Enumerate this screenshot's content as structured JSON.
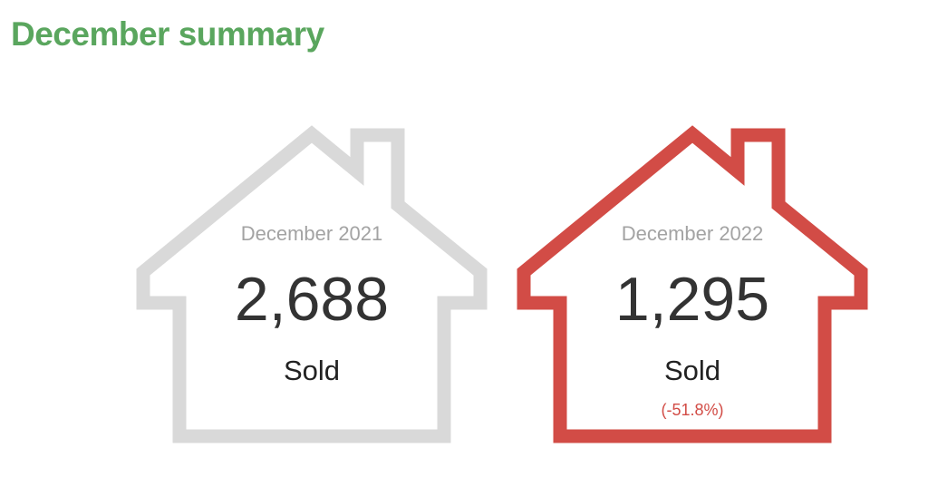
{
  "title": "December summary",
  "colors": {
    "title": "#5aa65e",
    "house_previous": "#d9d9d9",
    "house_current": "#d24c46",
    "change_negative": "#d24c46",
    "period_text": "#a3a3a3",
    "count_text": "#333333"
  },
  "cards": [
    {
      "icon": "house-outline-icon",
      "period": "December 2021",
      "count": "2,688",
      "unit": "Sold",
      "change": ""
    },
    {
      "icon": "house-outline-icon",
      "period": "December 2022",
      "count": "1,295",
      "unit": "Sold",
      "change": "(-51.8%)"
    }
  ]
}
